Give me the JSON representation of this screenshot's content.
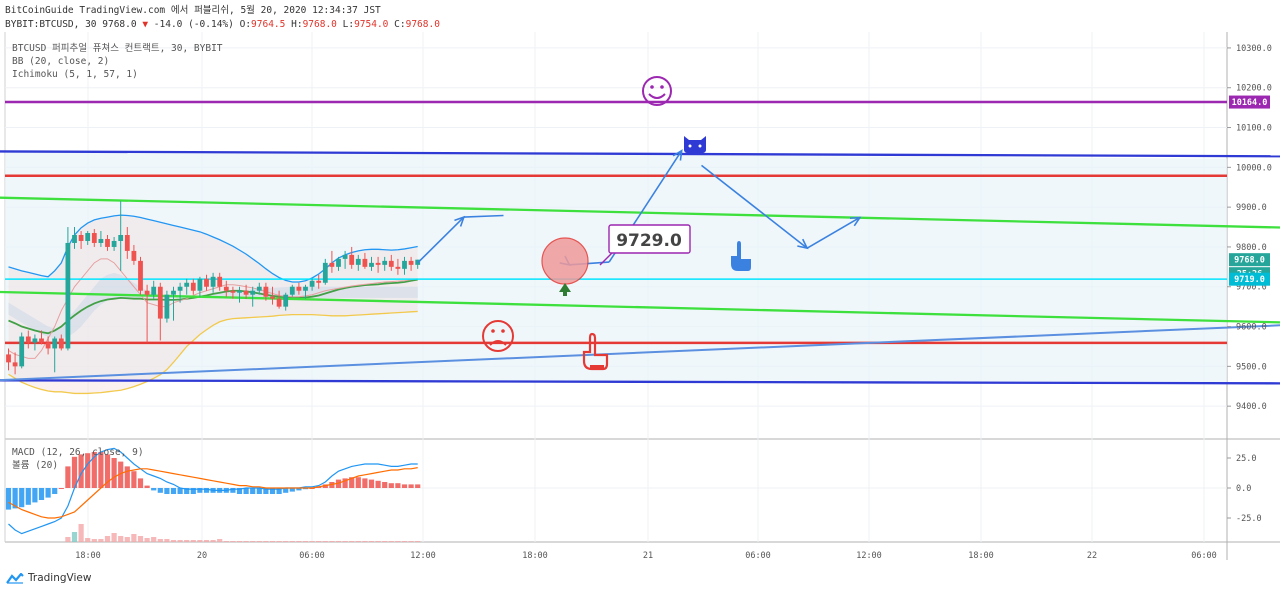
{
  "header": {
    "line1": "BitCoinGuide TradingView.com 에서 퍼블리쉬, 5월 20, 2020 12:34:37 JST",
    "symbol": "BYBIT:BTCUSD, 30",
    "last": "9768.0",
    "change_arrow": "▼",
    "change": "-14.0 (-0.14%)",
    "open_label": "O:",
    "open": "9764.5",
    "high_label": "H:",
    "high": "9768.0",
    "low_label": "L:",
    "low": "9754.0",
    "close_label": "C:",
    "close": "9768.0"
  },
  "legend": {
    "title": "BTCUSD 퍼피추얼 퓨쳐스 컨트랙트, 30, BYBIT",
    "bb": "BB (20, close, 2)",
    "ichimoku": "Ichimoku (5, 1, 57, 1)"
  },
  "macd_legend": {
    "macd": "MACD (12, 26, close, 9)",
    "volume": "볼륨 (20)"
  },
  "annotation": {
    "price_label": "9729.0"
  },
  "price_tags": [
    {
      "text": "10164.0",
      "color": "#9c27b0"
    },
    {
      "text": "9768.0",
      "color": "#26a69a"
    },
    {
      "text": "25:26",
      "color": "#26a69a"
    },
    {
      "text": "9719.0",
      "color": "#00bcd4"
    }
  ],
  "footer": {
    "brand": "TradingView"
  },
  "colors": {
    "up": "#26a69a",
    "down": "#ef5350",
    "purple": "#9c27b0",
    "blue": "#2f3ad4",
    "red": "#e53935",
    "green": "#3ee03e",
    "cyan": "#00e5ff",
    "bb": "#2196f3",
    "cloud": "#b5d8ee"
  },
  "chart_data": [
    {
      "type": "line",
      "title": "BTCUSD 퍼피추얼 퓨쳐스 컨트랙트, 30, BYBIT",
      "price_axis": {
        "ticks": [
          "10300.0",
          "10200.0",
          "10100.0",
          "10000.0",
          "9900.0",
          "9800.0",
          "9700.0",
          "9600.0",
          "9500.0",
          "9400.0"
        ],
        "range": [
          9320,
          10340
        ]
      },
      "time_axis": {
        "ticks": [
          "18:00",
          "20",
          "06:00",
          "12:00",
          "18:00",
          "21",
          "06:00",
          "12:00",
          "18:00",
          "22",
          "06:00"
        ]
      },
      "candles": [
        [
          9530,
          9545,
          9490,
          9510
        ],
        [
          9510,
          9535,
          9480,
          9500
        ],
        [
          9500,
          9585,
          9495,
          9575
        ],
        [
          9575,
          9590,
          9545,
          9560
        ],
        [
          9560,
          9580,
          9540,
          9570
        ],
        [
          9570,
          9590,
          9555,
          9560
        ],
        [
          9560,
          9575,
          9530,
          9545
        ],
        [
          9545,
          9575,
          9485,
          9570
        ],
        [
          9570,
          9580,
          9540,
          9545
        ],
        [
          9545,
          9850,
          9540,
          9810
        ],
        [
          9810,
          9850,
          9795,
          9830
        ],
        [
          9830,
          9840,
          9795,
          9815
        ],
        [
          9815,
          9840,
          9805,
          9835
        ],
        [
          9835,
          9845,
          9800,
          9810
        ],
        [
          9810,
          9840,
          9800,
          9820
        ],
        [
          9820,
          9830,
          9790,
          9800
        ],
        [
          9800,
          9825,
          9790,
          9815
        ],
        [
          9815,
          9915,
          9740,
          9830
        ],
        [
          9830,
          9850,
          9770,
          9790
        ],
        [
          9790,
          9805,
          9755,
          9765
        ],
        [
          9765,
          9775,
          9680,
          9690
        ],
        [
          9690,
          9705,
          9560,
          9680
        ],
        [
          9680,
          9715,
          9670,
          9700
        ],
        [
          9700,
          9710,
          9565,
          9620
        ],
        [
          9620,
          9690,
          9610,
          9680
        ],
        [
          9680,
          9700,
          9615,
          9690
        ],
        [
          9690,
          9710,
          9660,
          9700
        ],
        [
          9700,
          9720,
          9680,
          9710
        ],
        [
          9710,
          9720,
          9680,
          9690
        ],
        [
          9690,
          9725,
          9675,
          9720
        ],
        [
          9720,
          9730,
          9690,
          9700
        ],
        [
          9700,
          9735,
          9685,
          9725
        ],
        [
          9725,
          9735,
          9690,
          9700
        ],
        [
          9700,
          9715,
          9675,
          9690
        ],
        [
          9690,
          9700,
          9670,
          9685
        ],
        [
          9685,
          9700,
          9660,
          9690
        ],
        [
          9690,
          9705,
          9670,
          9680
        ],
        [
          9680,
          9700,
          9650,
          9690
        ],
        [
          9690,
          9710,
          9680,
          9700
        ],
        [
          9700,
          9710,
          9665,
          9675
        ],
        [
          9675,
          9700,
          9655,
          9670
        ],
        [
          9670,
          9690,
          9645,
          9650
        ],
        [
          9650,
          9685,
          9640,
          9680
        ],
        [
          9680,
          9705,
          9675,
          9700
        ],
        [
          9700,
          9710,
          9680,
          9690
        ],
        [
          9690,
          9705,
          9670,
          9700
        ],
        [
          9700,
          9720,
          9690,
          9715
        ],
        [
          9715,
          9730,
          9695,
          9710
        ],
        [
          9710,
          9770,
          9705,
          9760
        ],
        [
          9760,
          9790,
          9735,
          9750
        ],
        [
          9750,
          9775,
          9740,
          9770
        ],
        [
          9770,
          9790,
          9745,
          9780
        ],
        [
          9780,
          9800,
          9745,
          9755
        ],
        [
          9755,
          9780,
          9740,
          9770
        ],
        [
          9770,
          9785,
          9745,
          9750
        ],
        [
          9750,
          9775,
          9740,
          9760
        ],
        [
          9760,
          9775,
          9735,
          9755
        ],
        [
          9755,
          9775,
          9740,
          9765
        ],
        [
          9765,
          9780,
          9740,
          9750
        ],
        [
          9750,
          9770,
          9730,
          9745
        ],
        [
          9745,
          9775,
          9730,
          9765
        ],
        [
          9765,
          9775,
          9740,
          9755
        ],
        [
          9755,
          9768,
          9745,
          9768
        ]
      ],
      "bb_upper": [
        9750,
        9745,
        9740,
        9736,
        9732,
        9728,
        9725,
        9740,
        9760,
        9800,
        9830,
        9848,
        9860,
        9868,
        9872,
        9875,
        9878,
        9880,
        9879,
        9877,
        9874,
        9870,
        9866,
        9862,
        9858,
        9854,
        9850,
        9846,
        9842,
        9838,
        9832,
        9825,
        9818,
        9810,
        9802,
        9792,
        9782,
        9770,
        9758,
        9745,
        9733,
        9723,
        9716,
        9712,
        9712,
        9715,
        9722,
        9732,
        9745,
        9760,
        9772,
        9780,
        9786,
        9790,
        9793,
        9794,
        9794,
        9793,
        9792,
        9793,
        9795,
        9798,
        9801
      ],
      "bb_middle": [
        9615,
        9608,
        9600,
        9595,
        9590,
        9586,
        9583,
        9590,
        9600,
        9615,
        9628,
        9640,
        9650,
        9658,
        9664,
        9668,
        9670,
        9672,
        9671,
        9670,
        9670,
        9668,
        9668,
        9668,
        9667,
        9667,
        9668,
        9670,
        9672,
        9675,
        9678,
        9682,
        9685,
        9688,
        9690,
        9690,
        9688,
        9686,
        9683,
        9680,
        9677,
        9675,
        9673,
        9672,
        9672,
        9673,
        9675,
        9678,
        9683,
        9688,
        9693,
        9697,
        9700,
        9702,
        9704,
        9705,
        9706,
        9708,
        9709,
        9710,
        9712,
        9715,
        9718
      ],
      "bb_lower": [
        9480,
        9470,
        9460,
        9453,
        9447,
        9442,
        9438,
        9436,
        9436,
        9434,
        9432,
        9432,
        9432,
        9433,
        9434,
        9436,
        9438,
        9440,
        9444,
        9449,
        9455,
        9462,
        9470,
        9479,
        9492,
        9510,
        9530,
        9550,
        9565,
        9580,
        9592,
        9603,
        9612,
        9617,
        9620,
        9621,
        9622,
        9623,
        9624,
        9625,
        9626,
        9628,
        9629,
        9630,
        9630,
        9630,
        9630,
        9629,
        9628,
        9627,
        9627,
        9627,
        9628,
        9629,
        9630,
        9631,
        9632,
        9633,
        9634,
        9635,
        9636,
        9637,
        9638
      ],
      "conversion_line": [
        9540,
        9530,
        9525,
        9520,
        9520,
        9540,
        9570,
        9600,
        9640,
        9670,
        9700,
        9720,
        9740,
        9760,
        9770,
        9770,
        9760,
        9740,
        9720,
        9700,
        9680,
        9660,
        9655,
        9650,
        9650,
        9660,
        9665,
        9670,
        9678,
        9685,
        9690,
        9695,
        9700,
        9705,
        9705,
        9703,
        9700,
        9697,
        9693,
        9688,
        9683,
        9678,
        9676,
        9675,
        9675,
        9677,
        9680,
        9685,
        9690,
        9693,
        9696,
        9699,
        9702,
        9704,
        9706,
        9708,
        9710,
        9712,
        9713,
        9714,
        9715,
        9718,
        9720
      ],
      "cloud_top": [
        9660,
        9650,
        9640,
        9630,
        9620,
        9610,
        9600,
        9595,
        9600,
        9620,
        9640,
        9660,
        9680,
        9700,
        9720,
        9730,
        9735,
        9730,
        9720,
        9710,
        9700,
        9690,
        9685,
        9680,
        9678,
        9676,
        9675,
        9675,
        9676,
        9678,
        9680,
        9682,
        9684,
        9686,
        9688,
        9690,
        9692,
        9694,
        9695,
        9696,
        9697,
        9698,
        9699,
        9700,
        9700,
        9700,
        9700,
        9700,
        9700,
        9700,
        9700,
        9700,
        9700,
        9700,
        9700,
        9700,
        9700,
        9700,
        9700,
        9700,
        9700,
        9700,
        9700
      ],
      "cloud_bottom": [
        9630,
        9620,
        9610,
        9600,
        9590,
        9580,
        9575,
        9570,
        9570,
        9575,
        9585,
        9600,
        9620,
        9640,
        9655,
        9665,
        9670,
        9672,
        9672,
        9672,
        9672,
        9672,
        9672,
        9672,
        9672,
        9672,
        9672,
        9672,
        9672,
        9672,
        9672,
        9672,
        9672,
        9672,
        9672,
        9672,
        9672,
        9672,
        9672,
        9672,
        9672,
        9672,
        9672,
        9672,
        9672,
        9672,
        9672,
        9672,
        9672,
        9672,
        9672,
        9672,
        9672,
        9672,
        9672,
        9672,
        9672,
        9672,
        9672,
        9672,
        9672,
        9672,
        9672
      ],
      "horizontal_lines": [
        {
          "price": 10164.0,
          "color": "purple"
        },
        {
          "price": 9979.0,
          "color": "red"
        },
        {
          "price": 9719.0,
          "color": "cyan"
        },
        {
          "price": 9559.0,
          "color": "red"
        }
      ],
      "trend_lines": [
        {
          "from": [
            -2,
            10040.0
          ],
          "to": [
            301,
            10021.0
          ],
          "color": "blue"
        },
        {
          "from": [
            -2,
            9465.0
          ],
          "to": [
            301,
            9453.0
          ],
          "color": "blue"
        },
        {
          "from": [
            -2,
            9924.0
          ],
          "to": [
            301,
            9807.0
          ],
          "color": "green"
        },
        {
          "from": [
            -2,
            9687.0
          ],
          "to": [
            301,
            9568.0
          ],
          "color": "green"
        },
        {
          "from": [
            -2,
            9465.0
          ],
          "to": [
            301,
            9680.0
          ],
          "color": "lightblue"
        }
      ],
      "projection_path": [
        [
          62,
          9760
        ],
        [
          69,
          9875
        ],
        [
          75,
          9879
        ],
        [
          85,
          9755
        ],
        [
          91,
          9762
        ],
        [
          102,
          10042
        ],
        [
          105,
          10005
        ],
        [
          121,
          9797
        ],
        [
          129,
          9874
        ]
      ]
    },
    {
      "type": "bar",
      "title": "MACD (12, 26, close, 9)",
      "y_ticks": [
        "25.0",
        "0.0",
        "-25.0"
      ],
      "y_range": [
        -45,
        40
      ],
      "histogram": [
        -18,
        -17,
        -16,
        -14,
        -12,
        -10,
        -8,
        -5,
        0,
        18,
        26,
        28,
        29,
        30,
        30,
        28,
        25,
        22,
        18,
        14,
        8,
        2,
        -2,
        -4,
        -5,
        -5,
        -5,
        -5,
        -5,
        -4,
        -4,
        -4,
        -4,
        -4,
        -4,
        -5,
        -5,
        -5,
        -5,
        -5,
        -5,
        -5,
        -4,
        -3,
        -2,
        -1,
        0,
        1,
        3,
        5,
        7,
        8,
        9,
        9,
        8,
        7,
        6,
        5,
        4,
        4,
        3,
        3,
        3
      ],
      "macd": [
        -30,
        -35,
        -38,
        -36,
        -34,
        -32,
        -30,
        -28,
        -25,
        -15,
        0,
        12,
        20,
        26,
        30,
        32,
        33,
        30,
        25,
        20,
        16,
        12,
        10,
        8,
        5,
        3,
        0,
        -1,
        -1,
        -1,
        -1,
        -2,
        -2,
        -2,
        -1,
        -1,
        0,
        0,
        0,
        -1,
        -1,
        -1,
        0,
        0,
        0,
        1,
        1,
        2,
        5,
        10,
        14,
        16,
        18,
        19,
        20,
        20,
        20,
        19,
        18,
        18,
        19,
        20,
        20
      ],
      "signal": [
        -12,
        -15,
        -18,
        -20,
        -22,
        -24,
        -25,
        -25,
        -24,
        -22,
        -20,
        -15,
        -10,
        -5,
        0,
        5,
        9,
        12,
        14,
        15,
        16,
        16,
        15,
        14,
        13,
        12,
        11,
        10,
        9,
        8,
        7,
        6,
        5,
        4,
        3,
        2,
        2,
        1,
        1,
        0,
        0,
        0,
        0,
        0,
        0,
        0,
        0,
        1,
        2,
        3,
        4,
        6,
        8,
        10,
        11,
        12,
        13,
        14,
        15,
        15,
        16,
        16,
        17
      ],
      "time_labels": [
        "18:00",
        "20",
        "06:00",
        "12:00",
        "18:00",
        "21",
        "06:00",
        "12:00",
        "18:00",
        "22",
        "06:00"
      ]
    }
  ]
}
